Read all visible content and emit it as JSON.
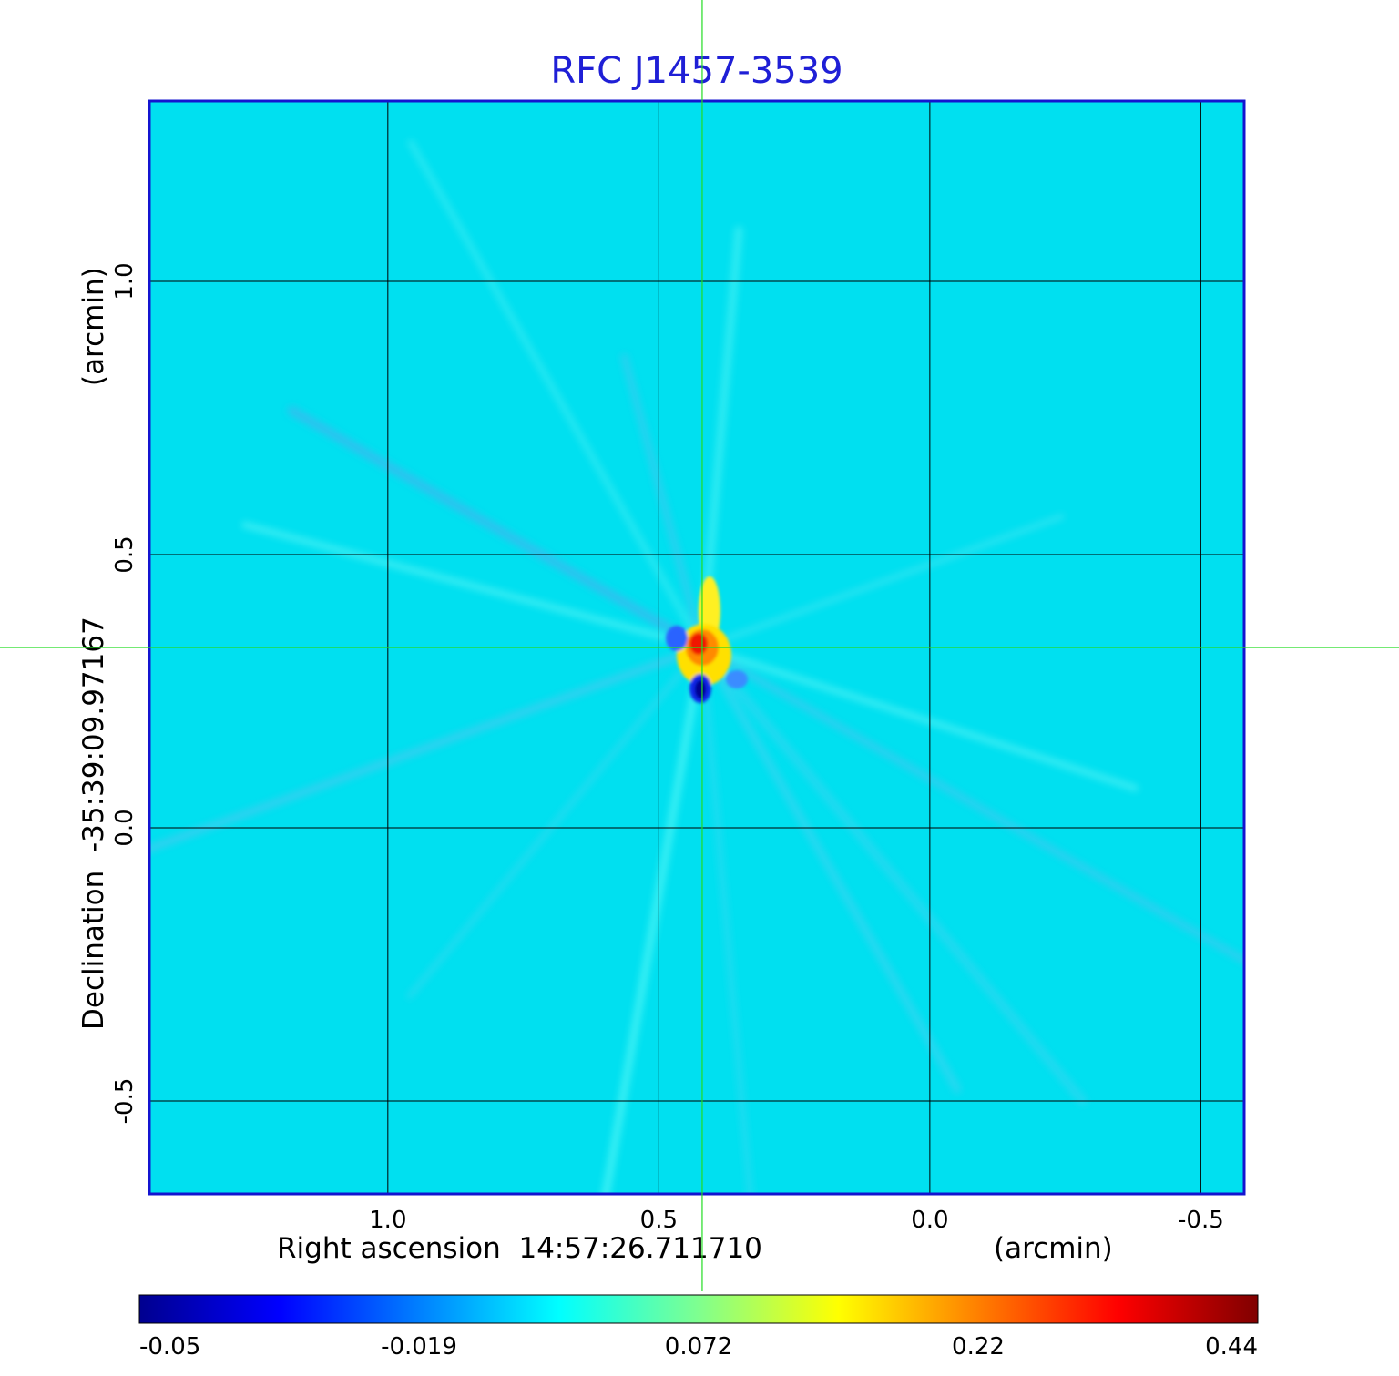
{
  "chart_data": {
    "type": "heatmap",
    "title": "RFC J1457-3539",
    "xlabel": "Right ascension  14:57:26.711710",
    "xunit": "(arcmin)",
    "ylabel": "Declination  -35:39:09.97167",
    "yunit": "(arcmin)",
    "x_axis_reversed": true,
    "xlim": [
      1.44,
      -0.58
    ],
    "ylim": [
      -0.67,
      1.33
    ],
    "xticks": [
      {
        "value": 1.0,
        "label": "1.0"
      },
      {
        "value": 0.5,
        "label": "0.5"
      },
      {
        "value": 0.0,
        "label": "0.0"
      },
      {
        "value": -0.5,
        "label": "-0.5"
      }
    ],
    "yticks": [
      {
        "value": 1.0,
        "label": "1.0"
      },
      {
        "value": 0.5,
        "label": "0.5"
      },
      {
        "value": 0.0,
        "label": "0.0"
      },
      {
        "value": -0.5,
        "label": "-0.5"
      }
    ],
    "grid": true,
    "crosshair": {
      "x": 0.42,
      "y": 0.33,
      "color": "#22dd22"
    },
    "colormap": "jet",
    "colorbar": {
      "ticks": [
        "-0.05",
        "-0.019",
        "0.072",
        "0.22",
        "0.44"
      ],
      "range": [
        -0.05,
        0.44
      ]
    },
    "background_color": "#00e0f0",
    "source": {
      "x": 0.42,
      "y": 0.33,
      "peak": 0.44,
      "min": -0.05
    }
  }
}
